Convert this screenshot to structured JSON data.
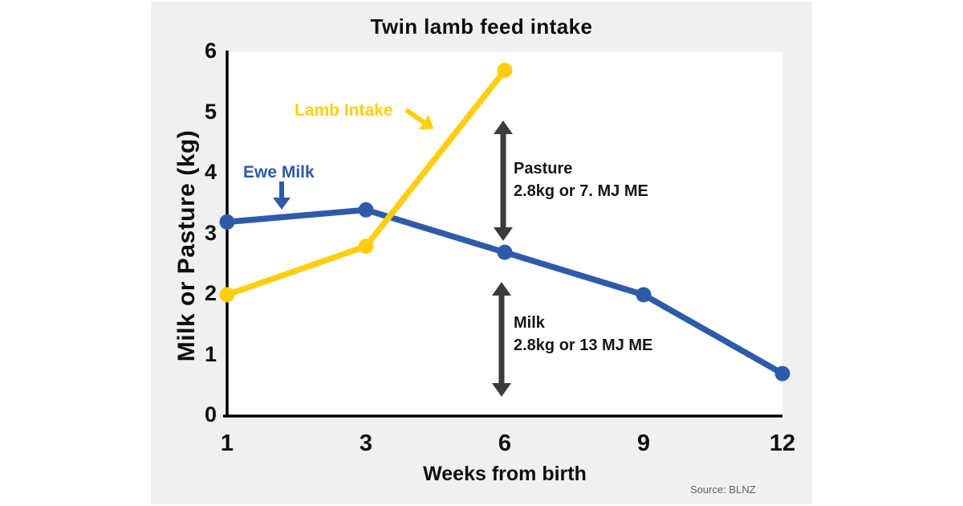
{
  "page": {
    "background": "#ffffff",
    "card_background": "#f0f0f0",
    "plot_background": "#ffffff"
  },
  "chart_data": {
    "type": "line",
    "title": "Twin lamb feed intake",
    "xlabel": "Weeks from birth",
    "ylabel": "Milk or Pasture (kg)",
    "categories": [
      "1",
      "3",
      "6",
      "9",
      "12"
    ],
    "series": [
      {
        "name": "Ewe Milk",
        "color": "#2e5ba9",
        "values": [
          3.2,
          3.4,
          2.7,
          2.0,
          0.7
        ]
      },
      {
        "name": "Lamb Intake",
        "color": "#ffce10",
        "values": [
          2.0,
          2.8,
          5.7,
          null,
          null
        ]
      }
    ],
    "ylim": [
      0,
      6
    ],
    "yticks": [
      "0",
      "1",
      "2",
      "3",
      "4",
      "5",
      "6"
    ],
    "grid": false,
    "legend_position": "inline-arrow-labels"
  },
  "annotations": {
    "pasture": {
      "line1": "Pasture",
      "line2": "2.8kg or 7. MJ ME"
    },
    "milk": {
      "line1": "Milk",
      "line2": "2.8kg or 13 MJ ME"
    }
  },
  "source": "Source: BLNZ",
  "colors": {
    "arrow_dark": "#3b3b3b",
    "axis": "#000000",
    "title_text": "#0e0e0e",
    "annotation_text": "#161616",
    "source_text": "#5c6064"
  }
}
